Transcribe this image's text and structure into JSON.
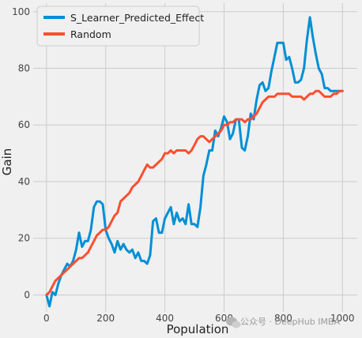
{
  "chart_data": {
    "type": "line",
    "title": "",
    "xlabel": "Population",
    "ylabel": "Gain",
    "xlim": [
      -45,
      1050
    ],
    "ylim": [
      -6,
      103
    ],
    "xticks": [
      0,
      200,
      400,
      600,
      800,
      1000
    ],
    "yticks": [
      0,
      20,
      40,
      60,
      80,
      100
    ],
    "grid": true,
    "legend_position": "top-left",
    "series": [
      {
        "name": "S_Learner_Predicted_Effect",
        "color": "#008fd5",
        "x": [
          0,
          10,
          20,
          30,
          40,
          50,
          60,
          70,
          80,
          90,
          100,
          110,
          120,
          130,
          140,
          150,
          160,
          170,
          180,
          190,
          200,
          210,
          220,
          230,
          240,
          250,
          260,
          270,
          280,
          290,
          300,
          310,
          320,
          330,
          340,
          350,
          360,
          370,
          380,
          390,
          400,
          410,
          420,
          430,
          440,
          450,
          460,
          470,
          480,
          490,
          500,
          510,
          520,
          530,
          540,
          550,
          560,
          570,
          580,
          590,
          600,
          610,
          620,
          630,
          640,
          650,
          660,
          670,
          680,
          690,
          700,
          710,
          720,
          730,
          740,
          750,
          760,
          770,
          780,
          790,
          800,
          810,
          820,
          830,
          840,
          850,
          860,
          870,
          880,
          890,
          900,
          910,
          920,
          930,
          940,
          950,
          960,
          970,
          980,
          990,
          1000
        ],
        "values": [
          0,
          -4,
          1,
          0,
          4,
          7,
          9,
          11,
          10,
          12,
          16,
          22,
          17,
          19,
          19,
          23,
          31,
          33,
          33,
          32,
          23,
          20,
          18,
          15,
          19,
          16,
          18,
          16,
          15,
          16,
          13,
          15,
          12,
          12,
          11,
          14,
          26,
          27,
          22,
          22,
          27,
          29,
          31,
          25,
          29,
          26,
          27,
          25,
          32,
          25,
          25,
          24,
          31,
          42,
          46,
          51,
          51,
          58,
          56,
          59,
          63,
          61,
          55,
          57,
          62,
          62,
          52,
          51,
          56,
          64,
          62,
          69,
          74,
          75,
          72,
          73,
          79,
          84,
          89,
          89,
          89,
          83,
          84,
          80,
          75,
          75,
          76,
          80,
          90,
          98,
          91,
          85,
          80,
          78,
          73,
          73,
          72,
          72,
          72,
          72,
          72
        ]
      },
      {
        "name": "Random",
        "color": "#fc4f30",
        "x": [
          0,
          10,
          20,
          30,
          40,
          50,
          60,
          70,
          80,
          90,
          100,
          110,
          120,
          130,
          140,
          150,
          160,
          170,
          180,
          190,
          200,
          210,
          220,
          230,
          240,
          250,
          260,
          270,
          280,
          290,
          300,
          310,
          320,
          330,
          340,
          350,
          360,
          370,
          380,
          390,
          400,
          410,
          420,
          430,
          440,
          450,
          460,
          470,
          480,
          490,
          500,
          510,
          520,
          530,
          540,
          550,
          560,
          570,
          580,
          590,
          600,
          610,
          620,
          630,
          640,
          650,
          660,
          670,
          680,
          690,
          700,
          710,
          720,
          730,
          740,
          750,
          760,
          770,
          780,
          790,
          800,
          810,
          820,
          830,
          840,
          850,
          860,
          870,
          880,
          890,
          900,
          910,
          920,
          930,
          940,
          950,
          960,
          970,
          980,
          990,
          1000
        ],
        "values": [
          0,
          1,
          3,
          5,
          6,
          7,
          8,
          9,
          10,
          11,
          12,
          13,
          13,
          14,
          15,
          17,
          19,
          21,
          22,
          23,
          23,
          24,
          26,
          28,
          29,
          33,
          34,
          35,
          36,
          38,
          39,
          40,
          42,
          44,
          46,
          45,
          45,
          46,
          47,
          48,
          50,
          50,
          51,
          50,
          51,
          51,
          51,
          51,
          50,
          51,
          53,
          55,
          56,
          56,
          55,
          54,
          55,
          56,
          57,
          58,
          60,
          60,
          61,
          61,
          62,
          62,
          62,
          61,
          62,
          62,
          63,
          64,
          66,
          68,
          69,
          70,
          70,
          70,
          71,
          71,
          71,
          71,
          71,
          70,
          70,
          70,
          70,
          69,
          70,
          71,
          71,
          72,
          72,
          71,
          70,
          70,
          70,
          71,
          71,
          72,
          72
        ]
      }
    ]
  },
  "watermark": {
    "text": "公众号 · DeepHub IMBA",
    "icon": "wechat-icon"
  }
}
